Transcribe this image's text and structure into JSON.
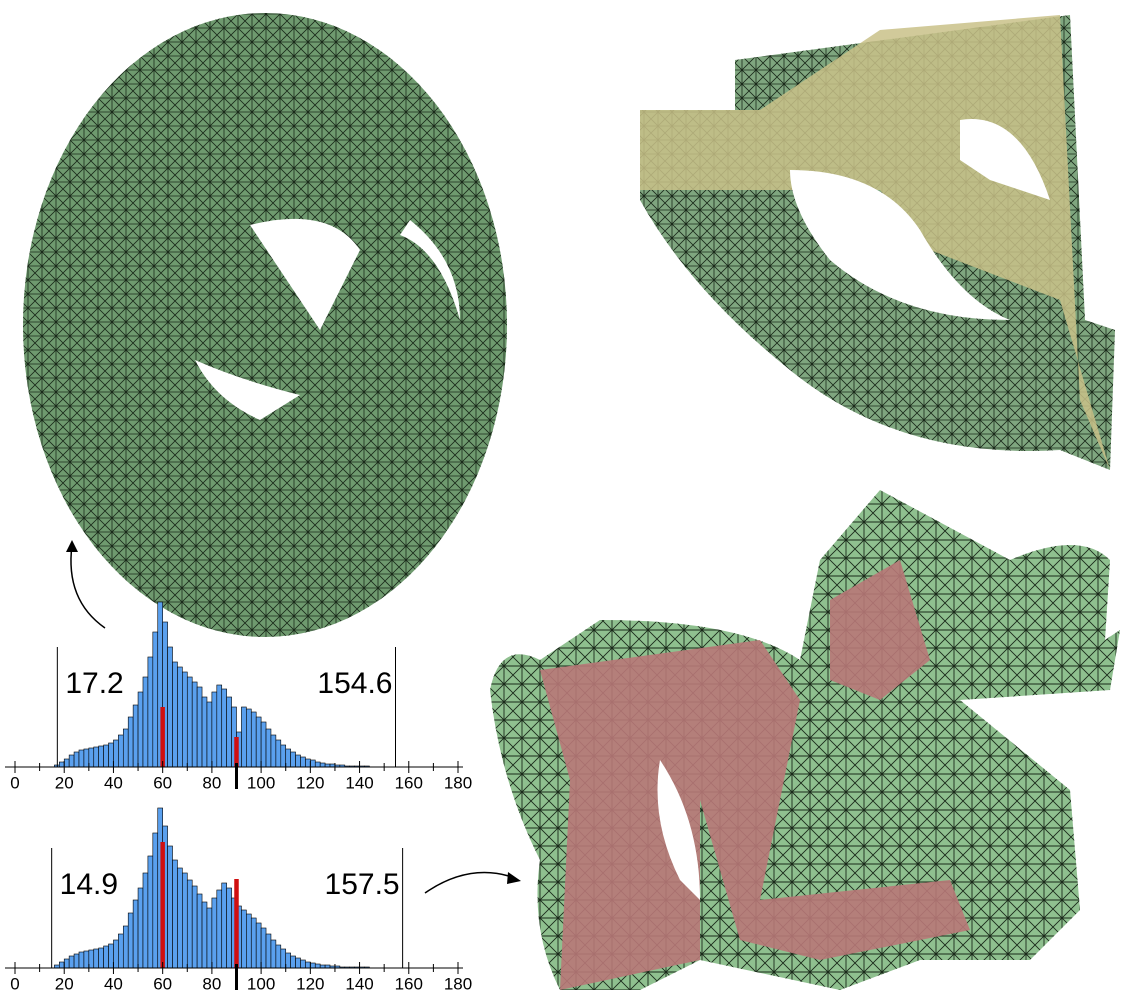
{
  "chart_data": [
    {
      "type": "histogram",
      "bins": [
        16,
        18,
        20,
        22,
        24,
        26,
        28,
        30,
        32,
        34,
        36,
        38,
        40,
        42,
        44,
        46,
        48,
        50,
        52,
        54,
        56,
        58,
        60,
        62,
        64,
        66,
        68,
        70,
        72,
        74,
        76,
        78,
        80,
        82,
        84,
        86,
        88,
        90,
        92,
        94,
        96,
        98,
        100,
        102,
        104,
        106,
        108,
        110,
        112,
        114,
        116,
        118,
        120,
        122,
        124,
        126,
        128,
        130,
        132,
        134,
        136,
        138,
        140,
        142,
        144,
        146,
        148,
        150
      ],
      "values": [
        2,
        5,
        8,
        12,
        15,
        17,
        18,
        19,
        20,
        21,
        22,
        24,
        27,
        32,
        38,
        50,
        62,
        75,
        90,
        110,
        135,
        165,
        145,
        120,
        105,
        100,
        95,
        90,
        85,
        80,
        70,
        65,
        75,
        82,
        78,
        70,
        60,
        35,
        60,
        58,
        55,
        50,
        45,
        38,
        32,
        27,
        22,
        18,
        15,
        12,
        10,
        8,
        7,
        5,
        4,
        3,
        3,
        2,
        2,
        1,
        1,
        1,
        1,
        1,
        0,
        0,
        0
      ],
      "color": "#5aa0ee",
      "highlight_x": [
        60,
        90
      ],
      "highlight_values": [
        60,
        30
      ],
      "highlight_color": "#d01010",
      "min": 17.2,
      "max": 154.6,
      "min_label": "17.2",
      "max_label": "154.6",
      "xlim": [
        0,
        180
      ],
      "xticks": [
        0,
        20,
        40,
        60,
        80,
        100,
        120,
        140,
        160,
        180
      ]
    },
    {
      "type": "histogram",
      "bins": [
        16,
        18,
        20,
        22,
        24,
        26,
        28,
        30,
        32,
        34,
        36,
        38,
        40,
        42,
        44,
        46,
        48,
        50,
        52,
        54,
        56,
        58,
        60,
        62,
        64,
        66,
        68,
        70,
        72,
        74,
        76,
        78,
        80,
        82,
        84,
        86,
        88,
        90,
        92,
        94,
        96,
        98,
        100,
        102,
        104,
        106,
        108,
        110,
        112,
        114,
        116,
        118,
        120,
        122,
        124,
        126,
        128,
        130,
        132,
        134,
        136,
        138,
        140,
        142,
        144,
        146,
        148,
        150
      ],
      "values": [
        3,
        6,
        9,
        12,
        14,
        16,
        17,
        18,
        19,
        20,
        22,
        24,
        28,
        34,
        42,
        55,
        68,
        80,
        95,
        112,
        135,
        160,
        142,
        122,
        108,
        100,
        95,
        88,
        82,
        74,
        66,
        60,
        70,
        78,
        85,
        80,
        70,
        62,
        58,
        54,
        50,
        45,
        40,
        34,
        28,
        23,
        19,
        15,
        12,
        10,
        8,
        6,
        5,
        4,
        3,
        3,
        2,
        2,
        1,
        1,
        1,
        1,
        1,
        1,
        0,
        0,
        0
      ],
      "color": "#5aa0ee",
      "highlight_x": [
        60,
        90
      ],
      "highlight_values": [
        126,
        89
      ],
      "highlight_color": "#d01010",
      "min": 14.9,
      "max": 157.5,
      "min_label": "14.9",
      "max_label": "157.5",
      "xlim": [
        0,
        180
      ],
      "xticks": [
        0,
        20,
        40,
        60,
        80,
        100,
        120,
        140,
        160,
        180
      ]
    }
  ]
}
